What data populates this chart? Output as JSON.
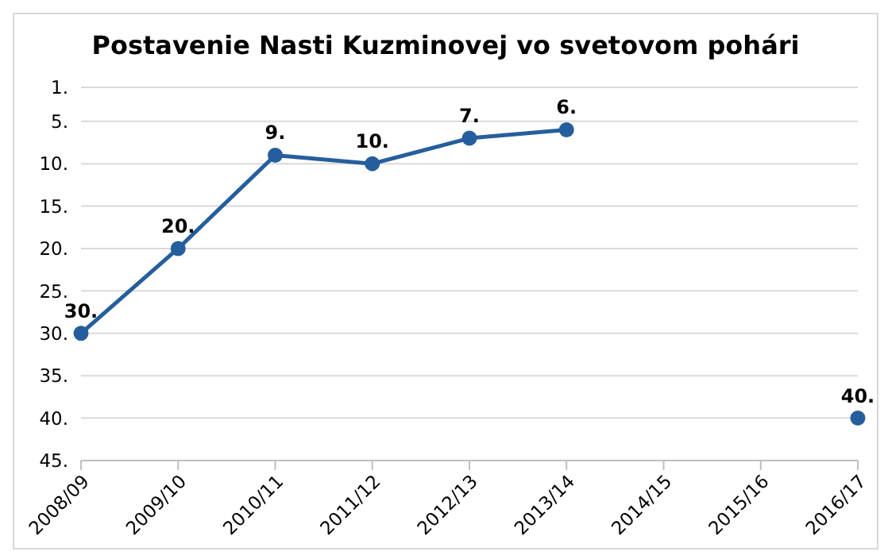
{
  "chart_data": {
    "type": "line",
    "title": "Postavenie Nasti Kuzminovej vo svetovom pohári",
    "categories": [
      "2008/09",
      "2009/10",
      "2010/11",
      "2011/12",
      "2012/13",
      "2013/14",
      "2014/15",
      "2015/16",
      "2016/17"
    ],
    "series": [
      {
        "color": "#255e9c",
        "values": [
          30,
          20,
          9,
          10,
          7,
          6,
          null,
          null,
          40
        ],
        "value_labels": [
          "30.",
          "20.",
          "9.",
          "10.",
          "7.",
          "6.",
          null,
          null,
          "40."
        ]
      }
    ],
    "ylim": [
      45,
      1
    ],
    "yticks": [
      {
        "value": 1,
        "label": "1."
      },
      {
        "value": 5,
        "label": "5."
      },
      {
        "value": 10,
        "label": "10."
      },
      {
        "value": 15,
        "label": "15."
      },
      {
        "value": 20,
        "label": "20."
      },
      {
        "value": 25,
        "label": "25."
      },
      {
        "value": 30,
        "label": "30."
      },
      {
        "value": 35,
        "label": "35."
      },
      {
        "value": 40,
        "label": "40."
      },
      {
        "value": 45,
        "label": "45."
      }
    ],
    "grid": "y",
    "marker": "circle",
    "line_style": "solid",
    "legend": false
  }
}
